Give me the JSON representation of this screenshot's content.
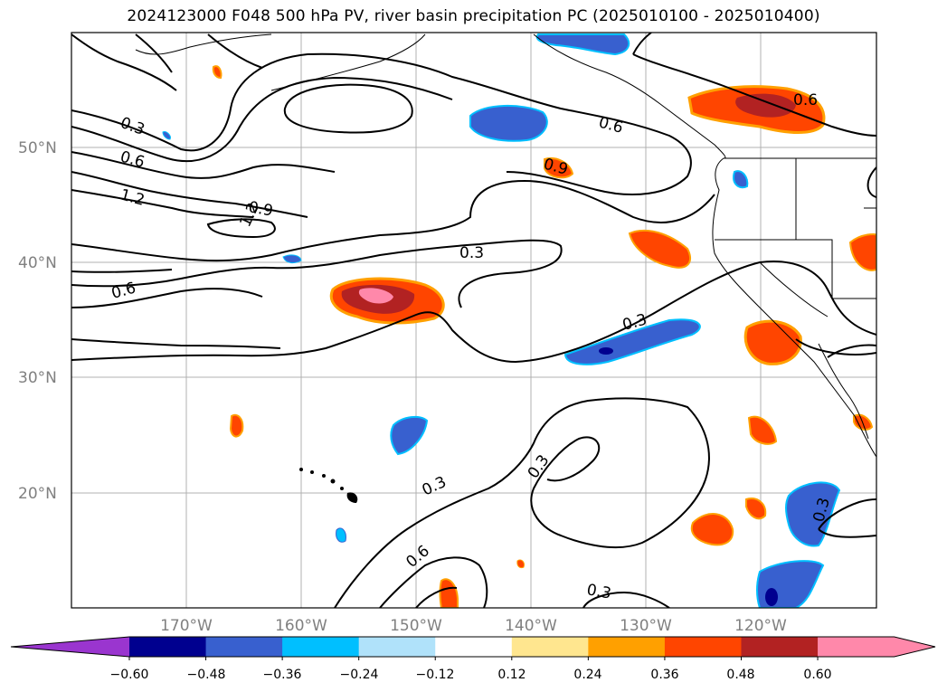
{
  "title": "2024123000 F048 500 hPa PV, river basin precipitation PC (2025010100 - 2025010400)",
  "map": {
    "lat_labels": [
      "50°N",
      "40°N",
      "30°N",
      "20°N"
    ],
    "lon_labels": [
      "170°W",
      "160°W",
      "150°W",
      "140°W",
      "130°W",
      "120°W"
    ],
    "contour_labels": [
      "0.3",
      "0.6",
      "1.2",
      "0.9",
      "1.2",
      "0.6",
      "0.6",
      "0.9",
      "0.6",
      "0.3",
      "0.3",
      "0.3",
      "0.3",
      "0.6",
      "0.3",
      "0.3"
    ]
  },
  "colorbar": {
    "tick_labels": [
      "−0.60",
      "−0.48",
      "−0.36",
      "−0.24",
      "−0.12",
      "0.12",
      "0.24",
      "0.36",
      "0.48",
      "0.60"
    ],
    "colors": [
      "#9a35cf",
      "#00008f",
      "#3860cf",
      "#00bfff",
      "#b0e2fa",
      "#ffffff",
      "#ffe68f",
      "#ffa000",
      "#ff4500",
      "#b22222",
      "#ff88aa",
      "#ff88aa"
    ]
  }
}
